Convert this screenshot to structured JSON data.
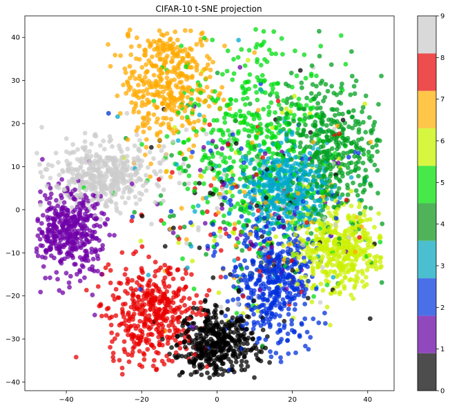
{
  "chart_data": {
    "type": "scatter",
    "title": "CIFAR-10 t-SNE projection",
    "xlabel": "",
    "ylabel": "",
    "xlim": [
      -51,
      47
    ],
    "ylim": [
      -42,
      45
    ],
    "xticks": [
      -40,
      -20,
      0,
      20,
      40
    ],
    "yticks": [
      -40,
      -30,
      -20,
      -10,
      0,
      10,
      20,
      30,
      40
    ],
    "grid": false,
    "legend": "none",
    "colorbar": {
      "ticks": [
        "0",
        "1",
        "2",
        "3",
        "4",
        "5",
        "6",
        "7",
        "8",
        "9"
      ],
      "colors": [
        "#4d4d4d",
        "#9148bd",
        "#4a70e8",
        "#4bbfcf",
        "#50b35a",
        "#47e84a",
        "#d6f640",
        "#ffc64a",
        "#ee4d4d",
        "#d9d9d9"
      ]
    },
    "point_colors": [
      "#000000",
      "#7000a8",
      "#0030dd",
      "#00aacc",
      "#00a01f",
      "#00dd10",
      "#ccf000",
      "#ffaa00",
      "#e80000",
      "#cccccc"
    ],
    "clusters": [
      {
        "label": 0,
        "center": [
          0,
          -31
        ],
        "spread": [
          5,
          4
        ]
      },
      {
        "label": 1,
        "center": [
          -40,
          -5
        ],
        "spread": [
          5,
          5
        ]
      },
      {
        "label": 2,
        "center": [
          15,
          -17
        ],
        "spread": [
          5,
          7
        ]
      },
      {
        "label": 3,
        "center": [
          18,
          5
        ],
        "spread": [
          6,
          5
        ]
      },
      {
        "label": 4,
        "center": [
          30,
          15
        ],
        "spread": [
          7,
          8
        ]
      },
      {
        "label": 5,
        "center": [
          8,
          17
        ],
        "spread": [
          10,
          11
        ]
      },
      {
        "label": 6,
        "center": [
          33,
          -9
        ],
        "spread": [
          6,
          5
        ]
      },
      {
        "label": 7,
        "center": [
          -13,
          30
        ],
        "spread": [
          6,
          8
        ]
      },
      {
        "label": 8,
        "center": [
          -17,
          -24
        ],
        "spread": [
          6,
          6
        ]
      },
      {
        "label": 9,
        "center": [
          -30,
          8
        ],
        "spread": [
          7,
          3.5
        ]
      }
    ],
    "points_per_cluster": 480
  }
}
